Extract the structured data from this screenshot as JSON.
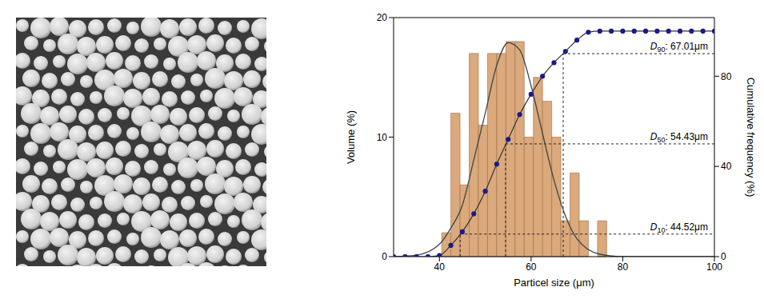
{
  "chart_data": {
    "type": "histogram",
    "xlabel": "Particel size (μm)",
    "ylabel": "Volume (%)",
    "y2label": "Cumulative frequency (%)",
    "bins": [
      40.5,
      42.5,
      44.5,
      46.5,
      48.5,
      50.5,
      52.5,
      54.5,
      56.5,
      58.5,
      60.5,
      62.5,
      64.5,
      66.5,
      68.5,
      70.5,
      72.5,
      74.5,
      76.5
    ],
    "counts": [
      2,
      12,
      6,
      17,
      11,
      17,
      17,
      18,
      18,
      10,
      15,
      13,
      10,
      3,
      7,
      3,
      0,
      3
    ],
    "color": "#dba97b",
    "xlim": [
      30,
      100
    ],
    "xticks": [
      40,
      60,
      80,
      100
    ],
    "ylim": [
      0,
      20
    ],
    "yticks": [
      0,
      10,
      20
    ],
    "y2lim": [
      0,
      106
    ],
    "y2ticks": [
      0,
      40,
      80
    ],
    "series": [
      {
        "type": "line",
        "color": "#37474f",
        "x": [
          30,
          35,
          40,
          42.5,
          45,
          47.5,
          50,
          52.5,
          55,
          57.5,
          60,
          62.5,
          65,
          67.5,
          70,
          75,
          80,
          90,
          100
        ],
        "values": [
          0,
          0.13,
          1.04,
          2.4,
          4.3,
          8.1,
          12.0,
          16.0,
          17.9,
          17.3,
          14.3,
          10.3,
          6.4,
          3.4,
          1.5,
          0.2,
          0,
          0,
          0
        ]
      },
      {
        "type": "line",
        "axis": "y2",
        "marker": "circle",
        "color": "#1a1a8c",
        "x": [
          30,
          32.5,
          35,
          37.5,
          40,
          42.5,
          45,
          47.5,
          50,
          52.5,
          55,
          57.5,
          60,
          62.5,
          65,
          67.5,
          70,
          72.5,
          75,
          77.5,
          80,
          82.5,
          85,
          87.5,
          90,
          92.5,
          95,
          97.5,
          100
        ],
        "values": [
          0,
          0,
          0,
          0,
          0.5,
          5,
          11,
          19,
          29,
          41,
          52,
          63,
          72,
          80,
          86,
          91,
          96,
          99.5,
          100,
          100,
          100,
          100,
          100,
          100,
          100,
          100,
          100,
          100,
          100
        ]
      }
    ],
    "annotations": [
      {
        "text": "D90: 67.01μm",
        "x": 67.01,
        "y": 90
      },
      {
        "text": "D50: 54.43μm",
        "x": 54.43,
        "y": 50
      },
      {
        "text": "D10: 44.52μm",
        "x": 44.52,
        "y": 10
      }
    ]
  }
}
